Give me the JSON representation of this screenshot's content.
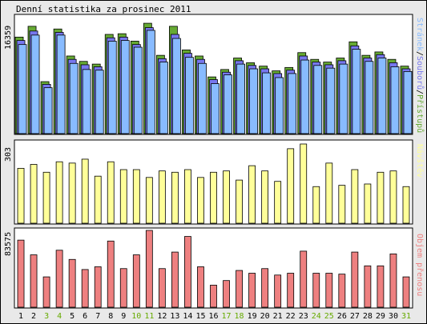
{
  "title": "Denní statistika za prosinec 2011",
  "colors": {
    "pristupu": "#66aa33",
    "souboru": "#7777ee",
    "stranek": "#88bbff",
    "navstev": "#ffff99",
    "prenosu": "#ee8080",
    "weekend_label": "#66aa00",
    "weekday_label": "#000000",
    "panel_bg": "#ffffff",
    "outer_bg": "#e9e9e9"
  },
  "chart_data": [
    {
      "type": "bar",
      "panel": "top",
      "y_max_label": "16359",
      "right_label_parts": [
        {
          "text": "Stránek",
          "color": "#88bbff"
        },
        {
          "text": "/",
          "color": "#000000"
        },
        {
          "text": "Souborů",
          "color": "#7777ee"
        },
        {
          "text": "/",
          "color": "#000000"
        },
        {
          "text": "Přístupů",
          "color": "#66aa33"
        }
      ],
      "ylim": [
        0,
        16359
      ],
      "series": [
        {
          "name": "Přístupů",
          "values": [
            14300,
            15900,
            7700,
            15500,
            11500,
            10700,
            10300,
            14700,
            14800,
            13700,
            16350,
            11600,
            15900,
            12400,
            11500,
            8400,
            9500,
            11200,
            10500,
            10000,
            9300,
            9800,
            12000,
            11000,
            10600,
            11200,
            13600,
            11600,
            12100,
            11000,
            10000
          ]
        },
        {
          "name": "Souborů",
          "values": [
            13800,
            15200,
            7300,
            15000,
            11000,
            10200,
            9900,
            14200,
            14300,
            13200,
            15700,
            11100,
            14700,
            11900,
            11000,
            8000,
            9100,
            10800,
            10100,
            9600,
            8900,
            9400,
            11500,
            10600,
            10200,
            10800,
            13000,
            11200,
            11700,
            10500,
            9600
          ]
        },
        {
          "name": "Stránek",
          "values": [
            13200,
            14600,
            6800,
            14600,
            10400,
            9500,
            9400,
            13700,
            13800,
            12800,
            15300,
            10600,
            14100,
            11300,
            10400,
            7400,
            8700,
            10300,
            9600,
            9000,
            8300,
            8900,
            10900,
            10100,
            9700,
            10300,
            12500,
            10700,
            11200,
            9900,
            9200
          ]
        }
      ]
    },
    {
      "type": "bar",
      "panel": "middle",
      "y_max_label": "303",
      "right_label": "Návštěv",
      "ylim": [
        0,
        303
      ],
      "series": [
        {
          "name": "Návštěv",
          "values": [
            210,
            225,
            195,
            235,
            230,
            245,
            180,
            235,
            205,
            205,
            175,
            200,
            195,
            205,
            175,
            195,
            200,
            165,
            220,
            200,
            160,
            285,
            303,
            140,
            230,
            145,
            205,
            150,
            195,
            200,
            140
          ]
        }
      ]
    },
    {
      "type": "bar",
      "panel": "bottom",
      "y_max_label": "83575",
      "right_label": "Objem přenosu",
      "ylim": [
        0,
        83575
      ],
      "series": [
        {
          "name": "Objem přenosu",
          "values": [
            73000,
            57000,
            33000,
            62000,
            52000,
            41000,
            44000,
            72000,
            42000,
            57000,
            83575,
            42000,
            60000,
            77000,
            44000,
            24000,
            29000,
            40000,
            37000,
            42000,
            35000,
            37000,
            61000,
            37000,
            37000,
            36000,
            60000,
            45000,
            45000,
            58000,
            33000
          ]
        }
      ]
    }
  ],
  "x_labels": [
    "1",
    "2",
    "3",
    "4",
    "5",
    "6",
    "7",
    "8",
    "9",
    "10",
    "11",
    "12",
    "13",
    "14",
    "15",
    "16",
    "17",
    "18",
    "19",
    "20",
    "21",
    "22",
    "23",
    "24",
    "25",
    "26",
    "27",
    "28",
    "29",
    "30",
    "31"
  ],
  "weekend_days": [
    3,
    4,
    10,
    11,
    17,
    18,
    24,
    25,
    31
  ]
}
